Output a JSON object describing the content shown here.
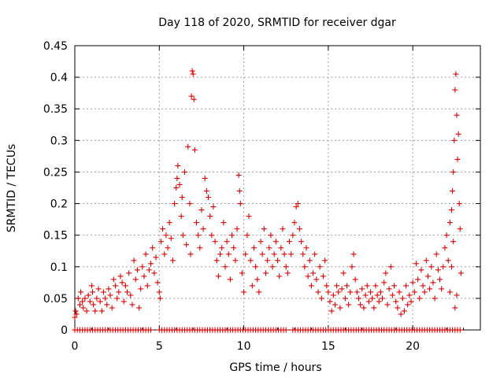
{
  "chart_data": {
    "type": "scatter",
    "title": "Day 118 of 2020, SRMTID for receiver dgar",
    "xlabel": "GPS time / hours",
    "ylabel": "SRMTID / TECUs",
    "xlim": [
      0,
      24
    ],
    "ylim": [
      0,
      0.45
    ],
    "x_ticks": [
      0,
      5,
      10,
      15,
      20
    ],
    "x_tick_labels": [
      "0",
      "5",
      "10",
      "15",
      "20"
    ],
    "y_ticks": [
      0,
      0.05,
      0.1,
      0.15,
      0.2,
      0.25,
      0.3,
      0.35,
      0.4,
      0.45
    ],
    "y_tick_labels": [
      "0",
      "0.05",
      "0.1",
      "0.15",
      "0.2",
      "0.25",
      "0.3",
      "0.35",
      "0.4",
      "0.45"
    ],
    "grid": true,
    "marker": "+",
    "color": "#e00000",
    "series": [
      {
        "name": "SRMTID",
        "points": [
          [
            0.0,
            0.02
          ],
          [
            0.05,
            0.03
          ],
          [
            0.1,
            0.025
          ],
          [
            0.2,
            0.05
          ],
          [
            0.3,
            0.04
          ],
          [
            0.35,
            0.06
          ],
          [
            0.45,
            0.045
          ],
          [
            0.5,
            0.035
          ],
          [
            0.6,
            0.05
          ],
          [
            0.7,
            0.03
          ],
          [
            0.8,
            0.055
          ],
          [
            0.9,
            0.045
          ],
          [
            1.0,
            0.07
          ],
          [
            1.05,
            0.06
          ],
          [
            1.1,
            0.04
          ],
          [
            1.2,
            0.03
          ],
          [
            1.3,
            0.05
          ],
          [
            1.4,
            0.065
          ],
          [
            1.5,
            0.045
          ],
          [
            1.6,
            0.03
          ],
          [
            1.7,
            0.06
          ],
          [
            1.8,
            0.05
          ],
          [
            1.9,
            0.04
          ],
          [
            2.0,
            0.065
          ],
          [
            2.1,
            0.055
          ],
          [
            2.2,
            0.035
          ],
          [
            2.3,
            0.08
          ],
          [
            2.4,
            0.07
          ],
          [
            2.5,
            0.05
          ],
          [
            2.6,
            0.06
          ],
          [
            2.7,
            0.085
          ],
          [
            2.8,
            0.075
          ],
          [
            2.9,
            0.045
          ],
          [
            3.0,
            0.07
          ],
          [
            3.1,
            0.06
          ],
          [
            3.2,
            0.09
          ],
          [
            3.3,
            0.055
          ],
          [
            3.4,
            0.04
          ],
          [
            3.5,
            0.11
          ],
          [
            3.6,
            0.08
          ],
          [
            3.7,
            0.095
          ],
          [
            3.8,
            0.035
          ],
          [
            3.9,
            0.065
          ],
          [
            4.0,
            0.1
          ],
          [
            4.1,
            0.085
          ],
          [
            4.2,
            0.12
          ],
          [
            4.3,
            0.07
          ],
          [
            4.4,
            0.095
          ],
          [
            4.5,
            0.105
          ],
          [
            4.6,
            0.13
          ],
          [
            4.7,
            0.09
          ],
          [
            4.8,
            0.115
          ],
          [
            4.9,
            0.075
          ],
          [
            5.0,
            0.06
          ],
          [
            5.05,
            0.05
          ],
          [
            5.1,
            0.14
          ],
          [
            5.2,
            0.16
          ],
          [
            5.3,
            0.12
          ],
          [
            5.4,
            0.15
          ],
          [
            5.5,
            0.13
          ],
          [
            5.6,
            0.17
          ],
          [
            5.7,
            0.145
          ],
          [
            5.8,
            0.11
          ],
          [
            5.9,
            0.2
          ],
          [
            6.0,
            0.225
          ],
          [
            6.05,
            0.24
          ],
          [
            6.1,
            0.26
          ],
          [
            6.2,
            0.23
          ],
          [
            6.3,
            0.18
          ],
          [
            6.35,
            0.21
          ],
          [
            6.4,
            0.15
          ],
          [
            6.5,
            0.25
          ],
          [
            6.6,
            0.135
          ],
          [
            6.7,
            0.29
          ],
          [
            6.8,
            0.2
          ],
          [
            6.85,
            0.12
          ],
          [
            6.9,
            0.37
          ],
          [
            6.95,
            0.41
          ],
          [
            7.0,
            0.405
          ],
          [
            7.05,
            0.365
          ],
          [
            7.1,
            0.285
          ],
          [
            7.2,
            0.17
          ],
          [
            7.3,
            0.15
          ],
          [
            7.4,
            0.13
          ],
          [
            7.5,
            0.19
          ],
          [
            7.6,
            0.16
          ],
          [
            7.7,
            0.24
          ],
          [
            7.8,
            0.22
          ],
          [
            7.9,
            0.21
          ],
          [
            8.0,
            0.18
          ],
          [
            8.1,
            0.15
          ],
          [
            8.2,
            0.195
          ],
          [
            8.3,
            0.14
          ],
          [
            8.4,
            0.11
          ],
          [
            8.5,
            0.085
          ],
          [
            8.6,
            0.12
          ],
          [
            8.7,
            0.13
          ],
          [
            8.8,
            0.17
          ],
          [
            8.9,
            0.1
          ],
          [
            9.0,
            0.14
          ],
          [
            9.1,
            0.12
          ],
          [
            9.2,
            0.08
          ],
          [
            9.3,
            0.15
          ],
          [
            9.4,
            0.13
          ],
          [
            9.5,
            0.11
          ],
          [
            9.6,
            0.16
          ],
          [
            9.7,
            0.245
          ],
          [
            9.75,
            0.22
          ],
          [
            9.8,
            0.2
          ],
          [
            9.9,
            0.09
          ],
          [
            10.0,
            0.06
          ],
          [
            10.1,
            0.12
          ],
          [
            10.2,
            0.15
          ],
          [
            10.3,
            0.18
          ],
          [
            10.4,
            0.11
          ],
          [
            10.5,
            0.07
          ],
          [
            10.6,
            0.13
          ],
          [
            10.7,
            0.1
          ],
          [
            10.8,
            0.08
          ],
          [
            10.9,
            0.06
          ],
          [
            11.0,
            0.14
          ],
          [
            11.1,
            0.12
          ],
          [
            11.2,
            0.16
          ],
          [
            11.3,
            0.09
          ],
          [
            11.4,
            0.11
          ],
          [
            11.5,
            0.13
          ],
          [
            11.6,
            0.15
          ],
          [
            11.7,
            0.1
          ],
          [
            11.8,
            0.12
          ],
          [
            11.9,
            0.14
          ],
          [
            12.0,
            0.11
          ],
          [
            12.1,
            0.085
          ],
          [
            12.2,
            0.13
          ],
          [
            12.3,
            0.16
          ],
          [
            12.4,
            0.12
          ],
          [
            12.5,
            0.1
          ],
          [
            12.6,
            0.09
          ],
          [
            12.7,
            0.14
          ],
          [
            12.8,
            0.12
          ],
          [
            12.9,
            0.15
          ],
          [
            13.0,
            0.17
          ],
          [
            13.1,
            0.195
          ],
          [
            13.2,
            0.2
          ],
          [
            13.3,
            0.16
          ],
          [
            13.4,
            0.14
          ],
          [
            13.5,
            0.12
          ],
          [
            13.6,
            0.1
          ],
          [
            13.7,
            0.13
          ],
          [
            13.8,
            0.085
          ],
          [
            13.9,
            0.11
          ],
          [
            14.0,
            0.07
          ],
          [
            14.1,
            0.09
          ],
          [
            14.2,
            0.12
          ],
          [
            14.3,
            0.08
          ],
          [
            14.4,
            0.06
          ],
          [
            14.5,
            0.1
          ],
          [
            14.6,
            0.05
          ],
          [
            14.7,
            0.085
          ],
          [
            14.8,
            0.11
          ],
          [
            14.9,
            0.07
          ],
          [
            15.0,
            0.06
          ],
          [
            15.1,
            0.045
          ],
          [
            15.2,
            0.03
          ],
          [
            15.3,
            0.055
          ],
          [
            15.4,
            0.04
          ],
          [
            15.5,
            0.07
          ],
          [
            15.6,
            0.06
          ],
          [
            15.7,
            0.035
          ],
          [
            15.8,
            0.065
          ],
          [
            15.9,
            0.09
          ],
          [
            16.0,
            0.05
          ],
          [
            16.1,
            0.07
          ],
          [
            16.2,
            0.04
          ],
          [
            16.3,
            0.06
          ],
          [
            16.4,
            0.1
          ],
          [
            16.5,
            0.12
          ],
          [
            16.6,
            0.08
          ],
          [
            16.7,
            0.06
          ],
          [
            16.8,
            0.05
          ],
          [
            16.9,
            0.04
          ],
          [
            17.0,
            0.065
          ],
          [
            17.1,
            0.035
          ],
          [
            17.2,
            0.055
          ],
          [
            17.3,
            0.07
          ],
          [
            17.4,
            0.045
          ],
          [
            17.5,
            0.06
          ],
          [
            17.6,
            0.05
          ],
          [
            17.7,
            0.035
          ],
          [
            17.8,
            0.07
          ],
          [
            17.9,
            0.055
          ],
          [
            18.0,
            0.045
          ],
          [
            18.1,
            0.06
          ],
          [
            18.2,
            0.05
          ],
          [
            18.3,
            0.075
          ],
          [
            18.4,
            0.09
          ],
          [
            18.5,
            0.04
          ],
          [
            18.6,
            0.065
          ],
          [
            18.7,
            0.1
          ],
          [
            18.8,
            0.055
          ],
          [
            18.9,
            0.07
          ],
          [
            19.0,
            0.045
          ],
          [
            19.1,
            0.035
          ],
          [
            19.2,
            0.06
          ],
          [
            19.3,
            0.025
          ],
          [
            19.4,
            0.05
          ],
          [
            19.5,
            0.03
          ],
          [
            19.6,
            0.07
          ],
          [
            19.7,
            0.04
          ],
          [
            19.8,
            0.055
          ],
          [
            19.9,
            0.045
          ],
          [
            20.0,
            0.075
          ],
          [
            20.1,
            0.06
          ],
          [
            20.2,
            0.105
          ],
          [
            20.3,
            0.08
          ],
          [
            20.4,
            0.05
          ],
          [
            20.5,
            0.095
          ],
          [
            20.6,
            0.07
          ],
          [
            20.7,
            0.06
          ],
          [
            20.8,
            0.11
          ],
          [
            20.9,
            0.085
          ],
          [
            21.0,
            0.065
          ],
          [
            21.1,
            0.1
          ],
          [
            21.2,
            0.075
          ],
          [
            21.3,
            0.05
          ],
          [
            21.4,
            0.12
          ],
          [
            21.5,
            0.095
          ],
          [
            21.6,
            0.08
          ],
          [
            21.7,
            0.065
          ],
          [
            21.8,
            0.1
          ],
          [
            21.9,
            0.13
          ],
          [
            22.0,
            0.15
          ],
          [
            22.1,
            0.11
          ],
          [
            22.2,
            0.17
          ],
          [
            22.3,
            0.19
          ],
          [
            22.35,
            0.22
          ],
          [
            22.4,
            0.25
          ],
          [
            22.45,
            0.3
          ],
          [
            22.5,
            0.38
          ],
          [
            22.55,
            0.405
          ],
          [
            22.6,
            0.34
          ],
          [
            22.65,
            0.27
          ],
          [
            22.7,
            0.31
          ],
          [
            22.75,
            0.2
          ],
          [
            22.8,
            0.16
          ],
          [
            22.85,
            0.09
          ],
          [
            22.6,
            0.055
          ],
          [
            22.5,
            0.035
          ],
          [
            22.4,
            0.14
          ],
          [
            22.3,
            0.1
          ],
          [
            22.2,
            0.06
          ]
        ],
        "zero_points_x": [
          0.0,
          0.15,
          0.3,
          0.45,
          0.6,
          0.75,
          0.9,
          1.05,
          1.2,
          1.35,
          1.5,
          1.65,
          1.8,
          1.95,
          2.1,
          2.25,
          2.4,
          2.55,
          2.7,
          2.85,
          3.0,
          3.15,
          3.3,
          3.45,
          3.6,
          3.75,
          3.9,
          4.05,
          4.2,
          4.35,
          4.5,
          5.0,
          5.15,
          5.3,
          5.45,
          5.6,
          5.75,
          5.9,
          6.05,
          6.2,
          6.35,
          6.5,
          6.65,
          6.8,
          6.95,
          7.1,
          7.25,
          7.4,
          7.55,
          7.7,
          7.85,
          8.0,
          8.15,
          8.3,
          8.45,
          8.6,
          8.75,
          8.9,
          9.05,
          9.2,
          9.35,
          9.5,
          9.65,
          9.8,
          9.95,
          10.1,
          10.25,
          10.4,
          10.55,
          10.7,
          10.85,
          11.0,
          11.15,
          11.3,
          11.45,
          11.6,
          11.75,
          11.9,
          12.05,
          12.2,
          12.35,
          12.5,
          12.9,
          13.05,
          13.2,
          13.35,
          13.5,
          13.65,
          13.8,
          13.95,
          14.1,
          14.25,
          14.4,
          14.55,
          14.7,
          14.85,
          15.0,
          15.15,
          15.3,
          15.45,
          15.6,
          15.75,
          15.9,
          16.05,
          16.2,
          16.35,
          16.5,
          16.65,
          16.8,
          16.95,
          17.1,
          17.25,
          17.4,
          17.55,
          17.7,
          17.85,
          18.0,
          18.15,
          18.3,
          18.45,
          18.6,
          18.75,
          18.9,
          19.05,
          19.2,
          19.35,
          19.5,
          19.65,
          19.8,
          19.95,
          20.1,
          20.25,
          20.4,
          20.55,
          20.7,
          20.85,
          21.0,
          21.15,
          21.3,
          21.45,
          21.6,
          21.75,
          21.9,
          22.05,
          22.2,
          22.35,
          22.5,
          22.65,
          22.8
        ]
      }
    ]
  }
}
